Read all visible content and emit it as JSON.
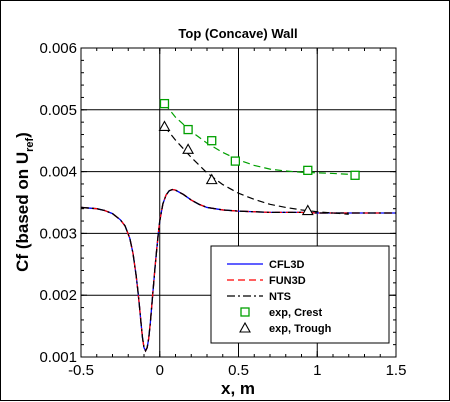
{
  "chart_data": {
    "type": "line",
    "title": "Top (Concave) Wall",
    "xlabel": "x, m",
    "ylabel_main": "Cf (based on U",
    "ylabel_sub": "ref",
    "ylabel_close": ")",
    "xlim": [
      -0.5,
      1.5
    ],
    "ylim": [
      0.001,
      0.006
    ],
    "xticks": [
      -0.5,
      0,
      0.5,
      1,
      1.5
    ],
    "xtick_labels": [
      "-0.5",
      "0",
      "0.5",
      "1",
      "1.5"
    ],
    "yticks": [
      0.001,
      0.002,
      0.003,
      0.004,
      0.005,
      0.006
    ],
    "ytick_labels": [
      "0.001",
      "0.002",
      "0.003",
      "0.004",
      "0.005",
      "0.006"
    ],
    "grid": true,
    "legend_position": "bottom-right",
    "series": [
      {
        "name": "CFL3D",
        "kind": "line",
        "color": "#0000ff",
        "dash": "solid",
        "x": [
          -0.5,
          -0.45,
          -0.4,
          -0.35,
          -0.3,
          -0.25,
          -0.22,
          -0.19,
          -0.17,
          -0.15,
          -0.14,
          -0.13,
          -0.12,
          -0.11,
          -0.1,
          -0.09,
          -0.08,
          -0.07,
          -0.06,
          -0.05,
          -0.04,
          -0.03,
          -0.02,
          -0.01,
          0.0,
          0.02,
          0.04,
          0.06,
          0.08,
          0.1,
          0.15,
          0.2,
          0.25,
          0.3,
          0.4,
          0.5,
          0.6,
          0.7,
          0.8,
          0.9,
          1.0,
          1.1,
          1.2,
          1.3,
          1.4,
          1.5
        ],
        "y": [
          0.00342,
          0.00341,
          0.0034,
          0.00337,
          0.00332,
          0.00322,
          0.00312,
          0.00292,
          0.00268,
          0.00232,
          0.0021,
          0.00185,
          0.00158,
          0.00132,
          0.00115,
          0.0011,
          0.00115,
          0.0013,
          0.00155,
          0.00185,
          0.00215,
          0.00245,
          0.00272,
          0.00298,
          0.0032,
          0.00348,
          0.00362,
          0.00369,
          0.00371,
          0.0037,
          0.00363,
          0.00354,
          0.00347,
          0.00342,
          0.00338,
          0.00336,
          0.00335,
          0.00334,
          0.00334,
          0.00334,
          0.00333,
          0.00333,
          0.00333,
          0.00333,
          0.00333,
          0.00333
        ]
      },
      {
        "name": "FUN3D",
        "kind": "line",
        "color": "#ff0000",
        "dash": "dashed",
        "x": [
          -0.5,
          -0.45,
          -0.4,
          -0.35,
          -0.3,
          -0.25,
          -0.22,
          -0.19,
          -0.17,
          -0.15,
          -0.14,
          -0.13,
          -0.12,
          -0.11,
          -0.1,
          -0.09,
          -0.08,
          -0.07,
          -0.06,
          -0.05,
          -0.04,
          -0.03,
          -0.02,
          -0.01,
          0.0,
          0.02,
          0.04,
          0.06,
          0.08,
          0.1,
          0.15,
          0.2,
          0.25,
          0.3,
          0.4,
          0.5,
          0.6,
          0.7,
          0.8,
          0.9,
          1.0,
          1.1,
          1.2,
          1.3,
          1.4,
          1.5
        ],
        "y": [
          0.00342,
          0.00341,
          0.0034,
          0.00337,
          0.00332,
          0.00322,
          0.00312,
          0.00292,
          0.00268,
          0.00232,
          0.0021,
          0.00185,
          0.00158,
          0.00132,
          0.00115,
          0.0011,
          0.00115,
          0.0013,
          0.00155,
          0.00185,
          0.00215,
          0.00245,
          0.00272,
          0.00298,
          0.0032,
          0.00348,
          0.00362,
          0.00369,
          0.00371,
          0.0037,
          0.00363,
          0.00354,
          0.00347,
          0.00342,
          0.00338,
          0.00336,
          0.00335,
          0.00334,
          0.00334,
          0.00334,
          0.00333,
          0.00333,
          0.00333,
          0.00333,
          0.00333,
          0.00333
        ]
      },
      {
        "name": "NTS",
        "kind": "line",
        "color": "#000000",
        "dash": "dashdot",
        "x": [
          -0.5,
          -0.45,
          -0.4,
          -0.35,
          -0.3,
          -0.25,
          -0.22,
          -0.19,
          -0.17,
          -0.15,
          -0.14,
          -0.13,
          -0.12,
          -0.11,
          -0.1,
          -0.09,
          -0.08,
          -0.07,
          -0.06,
          -0.05,
          -0.04,
          -0.03,
          -0.02,
          -0.01,
          0.0,
          0.02,
          0.04,
          0.06,
          0.08,
          0.1,
          0.15,
          0.2,
          0.25,
          0.3,
          0.4,
          0.5,
          0.6,
          0.7,
          0.8,
          0.9,
          1.0,
          1.1,
          1.2,
          1.3,
          1.4,
          1.5
        ],
        "y": [
          0.00342,
          0.00341,
          0.0034,
          0.00337,
          0.00332,
          0.00322,
          0.00312,
          0.00292,
          0.00268,
          0.00232,
          0.0021,
          0.00185,
          0.00158,
          0.00132,
          0.00115,
          0.0011,
          0.00115,
          0.0013,
          0.00155,
          0.00185,
          0.00215,
          0.00245,
          0.00272,
          0.00298,
          0.0032,
          0.00348,
          0.00362,
          0.00369,
          0.00371,
          0.0037,
          0.00363,
          0.00354,
          0.00347,
          0.00342,
          0.00338,
          0.00336,
          0.00335,
          0.00334,
          0.00334,
          0.00334,
          0.00333,
          0.00333,
          0.00333,
          0.00333,
          0.00333,
          0.00333
        ]
      },
      {
        "name": "exp, Crest",
        "kind": "markers",
        "marker": "square",
        "color": "#00a000",
        "x": [
          0.03,
          0.18,
          0.33,
          0.48,
          0.94,
          1.24
        ],
        "y": [
          0.0051,
          0.00468,
          0.0045,
          0.00417,
          0.00402,
          0.00394
        ],
        "fit_color": "#00a000",
        "fit_x": [
          0.03,
          0.1,
          0.2,
          0.3,
          0.4,
          0.5,
          0.6,
          0.7,
          0.8,
          0.9,
          1.0,
          1.1,
          1.24
        ],
        "fit_y": [
          0.0051,
          0.00488,
          0.00465,
          0.00446,
          0.00431,
          0.00419,
          0.0041,
          0.00404,
          0.00401,
          0.00399,
          0.00398,
          0.00397,
          0.00395
        ]
      },
      {
        "name": "exp, Trough",
        "kind": "markers",
        "marker": "triangle",
        "color": "#000000",
        "x": [
          0.03,
          0.18,
          0.33,
          0.94
        ],
        "y": [
          0.00473,
          0.00436,
          0.00387,
          0.00337
        ],
        "fit_color": "#000000",
        "fit_x": [
          0.03,
          0.1,
          0.2,
          0.3,
          0.4,
          0.5,
          0.6,
          0.7,
          0.8,
          0.9,
          1.0,
          1.1,
          1.2
        ],
        "fit_y": [
          0.00473,
          0.00451,
          0.00423,
          0.00398,
          0.00379,
          0.00365,
          0.00355,
          0.00347,
          0.00342,
          0.00338,
          0.00335,
          0.00333,
          0.00331
        ]
      }
    ]
  }
}
